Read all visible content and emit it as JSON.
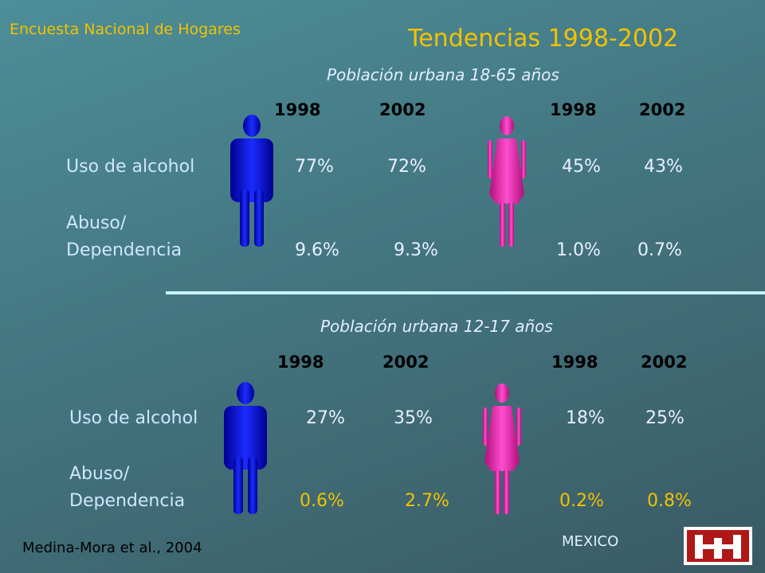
{
  "header": {
    "source": "Encuesta Nacional de Hogares",
    "title": "Tendencias 1998-2002"
  },
  "sections": [
    {
      "subtitle": "Población urbana 18-65 años",
      "years": [
        "1998",
        "2002",
        "1998",
        "2002"
      ],
      "rows": [
        {
          "label": [
            "Uso de alcohol"
          ],
          "values": [
            "77%",
            "72%",
            "45%",
            "43%"
          ]
        },
        {
          "label": [
            "Abuso/",
            "Dependencia"
          ],
          "values": [
            "9.6%",
            "9.3%",
            "1.0%",
            "0.7%"
          ]
        }
      ]
    },
    {
      "subtitle": "Población urbana 12-17 años",
      "years": [
        "1998",
        "2002",
        "1998",
        "2002"
      ],
      "rows": [
        {
          "label": [
            "Uso de alcohol"
          ],
          "values": [
            "27%",
            "35%",
            "18%",
            "25%"
          ]
        },
        {
          "label": [
            "Abuso/",
            "Dependencia"
          ],
          "values": [
            "0.6%",
            "2.7%",
            "0.2%",
            "0.8%"
          ]
        }
      ]
    }
  ],
  "footer": {
    "citation": "Medina-Mora et al., 2004",
    "country": "MEXICO"
  }
}
